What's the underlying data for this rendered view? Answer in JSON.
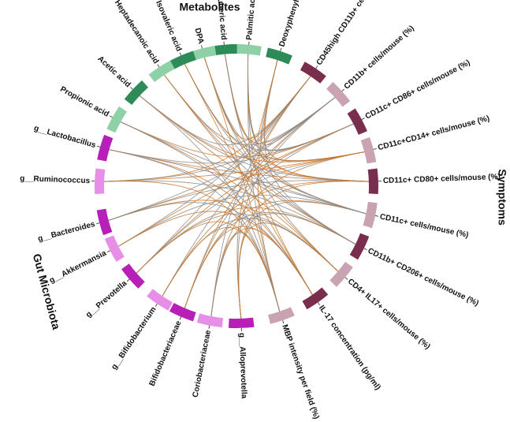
{
  "diagram": {
    "groups": [
      {
        "id": "metabolites",
        "title": "Metabolites",
        "color": "#2e8b57",
        "light": "#8fd1a6"
      },
      {
        "id": "symptoms",
        "title": "Symptoms",
        "color": "#7a2e4e",
        "light": "#c9a3b2"
      },
      {
        "id": "microbiota",
        "title": "Gut Microbiota",
        "color": "#b81fb8",
        "light": "#e78fe7"
      }
    ],
    "nodes": [
      {
        "label": "Deoxyphenylacetic acid",
        "group": "metabolites",
        "angle": -72
      },
      {
        "label": "Palmitic acid",
        "group": "metabolites",
        "angle": -85
      },
      {
        "label": "Suberic acid",
        "group": "metabolites",
        "angle": -95
      },
      {
        "label": "DPA",
        "group": "metabolites",
        "angle": -104
      },
      {
        "label": "Isovaleric acid",
        "group": "metabolites",
        "angle": -113
      },
      {
        "label": "Heptadecanoic acid",
        "group": "metabolites",
        "angle": -123
      },
      {
        "label": "Acetic acid",
        "group": "metabolites",
        "angle": -137
      },
      {
        "label": "Propionic acid",
        "group": "metabolites",
        "angle": -151
      },
      {
        "label": "CD45high CD11b+ cells/mouse (%)",
        "group": "symptoms",
        "angle": -56
      },
      {
        "label": "CD11b+ cells/mouse (%)",
        "group": "symptoms",
        "angle": -42
      },
      {
        "label": "CD11c+ CD86+ cells/mouse (%)",
        "group": "symptoms",
        "angle": -28
      },
      {
        "label": "CD11c+CD14+ cells/mouse (%)",
        "group": "symptoms",
        "angle": -15
      },
      {
        "label": "CD11c+ CD80+ cells/mouse (%)",
        "group": "symptoms",
        "angle": -2
      },
      {
        "label": "CD11c+ cells/mouse (%)",
        "group": "symptoms",
        "angle": 12
      },
      {
        "label": "CD11b+ CD206+ cells/mouse (%)",
        "group": "symptoms",
        "angle": 26
      },
      {
        "label": "CD4+ IL17+ cells/mouse (%)",
        "group": "symptoms",
        "angle": 40
      },
      {
        "label": "IL-17 concentration (pg/ml)",
        "group": "symptoms",
        "angle": 55
      },
      {
        "label": "MBP intensity per field (%)",
        "group": "symptoms",
        "angle": 71
      },
      {
        "label": "g__Alloprevotella",
        "group": "microbiota",
        "angle": 88
      },
      {
        "label": "Coriobacteriaceae",
        "group": "microbiota",
        "angle": 101
      },
      {
        "label": "Bifidobacteriaceae",
        "group": "microbiota",
        "angle": 113
      },
      {
        "label": "g__Bifidobacterium",
        "group": "microbiota",
        "angle": 124
      },
      {
        "label": "g__Prevotella",
        "group": "microbiota",
        "angle": 139
      },
      {
        "label": "g__Akkermansia",
        "group": "microbiota",
        "angle": 153
      },
      {
        "label": "g__Bacteroides",
        "group": "microbiota",
        "angle": 165
      },
      {
        "label": "g__Ruminococcus",
        "group": "microbiota",
        "angle": 182
      },
      {
        "label": "g__Lactobacillus",
        "group": "microbiota",
        "angle": 196
      }
    ],
    "link_colors": {
      "primary": "#c9782f",
      "secondary": "#8a8a8a"
    }
  }
}
